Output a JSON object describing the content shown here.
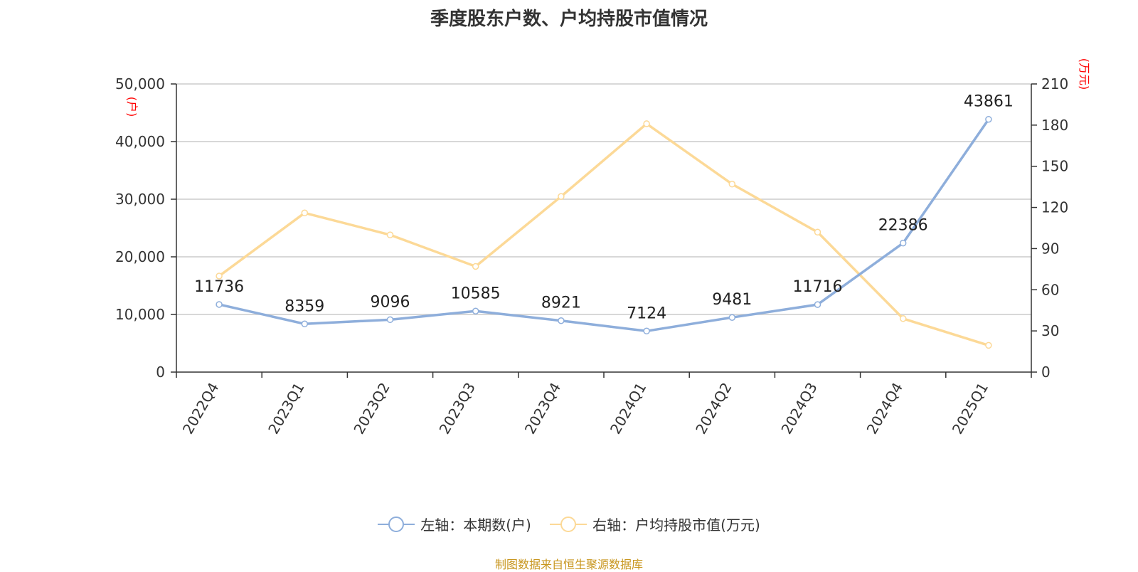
{
  "title": "季度股东户数、户均持股市值情况",
  "source": "制图数据来自恒生聚源数据库",
  "chart_data": {
    "type": "line",
    "categories": [
      "2022Q4",
      "2023Q1",
      "2023Q2",
      "2023Q3",
      "2023Q4",
      "2024Q1",
      "2024Q2",
      "2024Q3",
      "2024Q4",
      "2025Q1"
    ],
    "left_axis": {
      "unit": "(户)",
      "ylim": [
        0,
        50000
      ],
      "ticks": [
        "0",
        "10,000",
        "20,000",
        "30,000",
        "40,000",
        "50,000"
      ]
    },
    "right_axis": {
      "unit": "(万元)",
      "ylim": [
        0,
        210
      ],
      "ticks": [
        "0",
        "30",
        "60",
        "90",
        "120",
        "150",
        "180",
        "210"
      ]
    },
    "series": [
      {
        "name": "左轴：本期数(户)",
        "axis": "left",
        "color": "#8eaedb",
        "values": [
          11736,
          8359,
          9096,
          10585,
          8921,
          7124,
          9481,
          11716,
          22386,
          43861
        ],
        "labels": [
          "11736",
          "8359",
          "9096",
          "10585",
          "8921",
          "7124",
          "9481",
          "11716",
          "22386",
          "43861"
        ]
      },
      {
        "name": "右轴：户均持股市值(万元)",
        "axis": "right",
        "color": "#fcd997",
        "values": [
          70,
          116,
          100,
          77,
          128,
          181,
          137,
          102,
          39,
          19.5
        ]
      }
    ],
    "grid": true,
    "legend_position": "bottom"
  }
}
